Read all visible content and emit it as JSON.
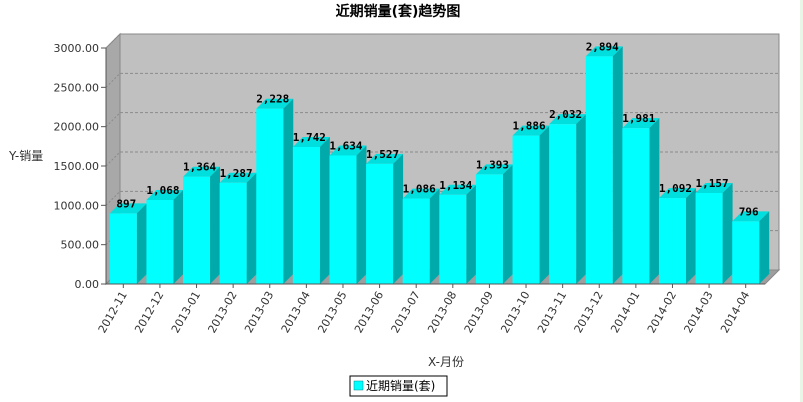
{
  "chart_data": {
    "type": "bar",
    "title": "近期销量(套)趋势图",
    "xlabel": "X-月份",
    "ylabel": "Y-销量",
    "categories": [
      "2012-11",
      "2012-12",
      "2013-01",
      "2013-02",
      "2013-03",
      "2013-04",
      "2013-05",
      "2013-06",
      "2013-07",
      "2013-08",
      "2013-09",
      "2013-10",
      "2013-11",
      "2013-12",
      "2014-01",
      "2014-02",
      "2014-03",
      "2014-04"
    ],
    "series": [
      {
        "name": "近期销量(套)",
        "values": [
          897,
          1068,
          1364,
          1287,
          2228,
          1742,
          1634,
          1527,
          1086,
          1134,
          1393,
          1886,
          2032,
          2894,
          1981,
          1092,
          1157,
          796
        ],
        "value_labels": [
          "897",
          "1,068",
          "1,364",
          "1,287",
          "2,228",
          "1,742",
          "1,634",
          "1,527",
          "1,086",
          "1,134",
          "1,393",
          "1,886",
          "2,032",
          "2,894",
          "1,981",
          "1,092",
          "1,157",
          "796"
        ]
      }
    ],
    "ylim": [
      0,
      3000
    ],
    "yticks": [
      "0.00",
      "500.00",
      "1000.00",
      "1500.00",
      "2000.00",
      "2500.00",
      "3000.00"
    ],
    "grid": true,
    "legend_position": "bottom-center",
    "colors": {
      "bar_front": "#00ffff",
      "bar_side": "#00aaaa",
      "bar_top": "#00dede",
      "plot_bg": "#c0c0c0",
      "wall": "#a8a8a8",
      "floor": "#9e9e9e"
    }
  }
}
